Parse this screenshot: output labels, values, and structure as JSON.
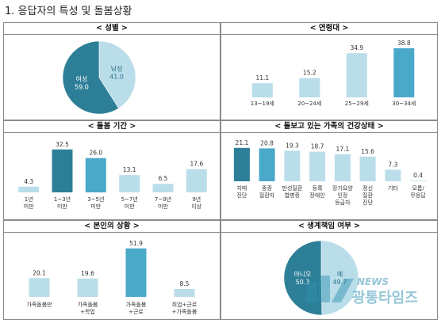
{
  "page": {
    "title": "1. 응답자의 특성 및 돌봄상황"
  },
  "colors": {
    "dark": "#2d7f98",
    "mid": "#4aa9c9",
    "light": "#b9dde9"
  },
  "watermark": {
    "line1": "NEWS",
    "line2": "광통타임즈"
  },
  "chart_data": [
    {
      "id": "gender",
      "type": "pie",
      "title": "< 성별 >",
      "slices": [
        {
          "label": "남성",
          "value": 41.0,
          "value_label": "41.0",
          "color": "#b9dde9",
          "label_color": "#2d6f86"
        },
        {
          "label": "여성",
          "value": 59.0,
          "value_label": "59.0",
          "color": "#2d7f98",
          "label_color": "#ffffff"
        }
      ]
    },
    {
      "id": "age",
      "type": "bar",
      "title": "< 연령대 >",
      "categories": [
        "13~19세",
        "20~24세",
        "25~29세",
        "30~34세"
      ],
      "values": [
        11.1,
        15.2,
        34.9,
        38.8
      ],
      "colors": [
        "#b9dde9",
        "#b9dde9",
        "#b9dde9",
        "#4aa9c9"
      ],
      "ylim": [
        0,
        40
      ]
    },
    {
      "id": "care_period",
      "type": "bar",
      "title": "< 돌봄 기간 >",
      "categories": [
        [
          "1년",
          "미만"
        ],
        [
          "1~3년",
          "미만"
        ],
        [
          "3~5년",
          "미만"
        ],
        [
          "5~7년",
          "미만"
        ],
        [
          "7~9년",
          "미만"
        ],
        [
          "9년",
          "이상"
        ]
      ],
      "values": [
        4.3,
        32.5,
        26.0,
        13.1,
        6.5,
        17.6
      ],
      "colors": [
        "#b9dde9",
        "#2d7f98",
        "#4aa9c9",
        "#b9dde9",
        "#b9dde9",
        "#b9dde9"
      ],
      "ylim": [
        0,
        36
      ]
    },
    {
      "id": "family_health",
      "type": "bar",
      "title": "< 돌보고 있는 가족의 건강상태 >",
      "categories": [
        [
          "치매",
          "진단"
        ],
        [
          "중증",
          "질환자"
        ],
        [
          "만성질환",
          "합병증"
        ],
        [
          "등록",
          "장애인"
        ],
        [
          "장기요양",
          "인정",
          "등급자"
        ],
        [
          "정신",
          "질환",
          "진단"
        ],
        [
          "기타"
        ],
        [
          "모름/",
          "무응답"
        ]
      ],
      "values": [
        21.1,
        20.8,
        19.3,
        18.7,
        17.1,
        15.6,
        7.3,
        0.4
      ],
      "colors": [
        "#2d7f98",
        "#4aa9c9",
        "#b9dde9",
        "#b9dde9",
        "#b9dde9",
        "#b9dde9",
        "#b9dde9",
        "#b9dde9"
      ],
      "ylim": [
        0,
        24
      ]
    },
    {
      "id": "self_situation",
      "type": "bar",
      "title": "< 본인의 상황 >",
      "categories": [
        [
          "가족돌봄만"
        ],
        [
          "가족돌봄",
          "+학업"
        ],
        [
          "가족돌봄",
          "+근로"
        ],
        [
          "취업+근로",
          "+가족돌봄"
        ]
      ],
      "values": [
        20.1,
        19.6,
        51.9,
        8.5
      ],
      "colors": [
        "#b9dde9",
        "#b9dde9",
        "#4aa9c9",
        "#b9dde9"
      ],
      "ylim": [
        0,
        56
      ]
    },
    {
      "id": "livelihood",
      "type": "pie",
      "title": "< 생계책임 여부 >",
      "slices": [
        {
          "label": "예",
          "value": 49.7,
          "value_label": "49.7",
          "color": "#b9dde9",
          "label_color": "#2d6f86"
        },
        {
          "label": "아니오",
          "value": 50.3,
          "value_label": "50.3",
          "color": "#2d7f98",
          "label_color": "#ffffff"
        }
      ]
    }
  ]
}
